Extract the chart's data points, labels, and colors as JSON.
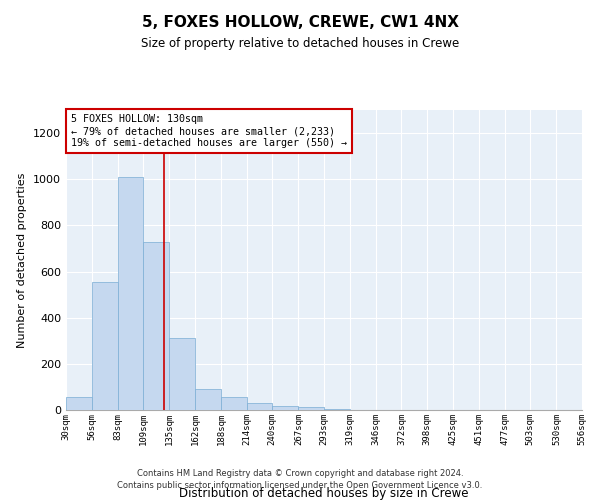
{
  "title": "5, FOXES HOLLOW, CREWE, CW1 4NX",
  "subtitle": "Size of property relative to detached houses in Crewe",
  "xlabel": "Distribution of detached houses by size in Crewe",
  "ylabel": "Number of detached properties",
  "bar_color": "#c5d8ef",
  "bar_edge_color": "#7aadd4",
  "bg_color": "#e8f0f8",
  "grid_color": "#ffffff",
  "red_line_x": 130,
  "annotation_text": "5 FOXES HOLLOW: 130sqm\n← 79% of detached houses are smaller (2,233)\n19% of semi-detached houses are larger (550) →",
  "annotation_box_color": "#ffffff",
  "annotation_box_edge": "#cc0000",
  "footer_line1": "Contains HM Land Registry data © Crown copyright and database right 2024.",
  "footer_line2": "Contains public sector information licensed under the Open Government Licence v3.0.",
  "bin_edges": [
    30,
    56,
    83,
    109,
    135,
    162,
    188,
    214,
    240,
    267,
    293,
    319,
    346,
    372,
    398,
    425,
    451,
    477,
    503,
    530,
    556
  ],
  "bin_counts": [
    56,
    556,
    1010,
    730,
    310,
    90,
    55,
    30,
    18,
    11,
    5,
    0,
    0,
    0,
    0,
    0,
    0,
    0,
    0,
    0
  ],
  "ylim": [
    0,
    1300
  ],
  "yticks": [
    0,
    200,
    400,
    600,
    800,
    1000,
    1200
  ]
}
